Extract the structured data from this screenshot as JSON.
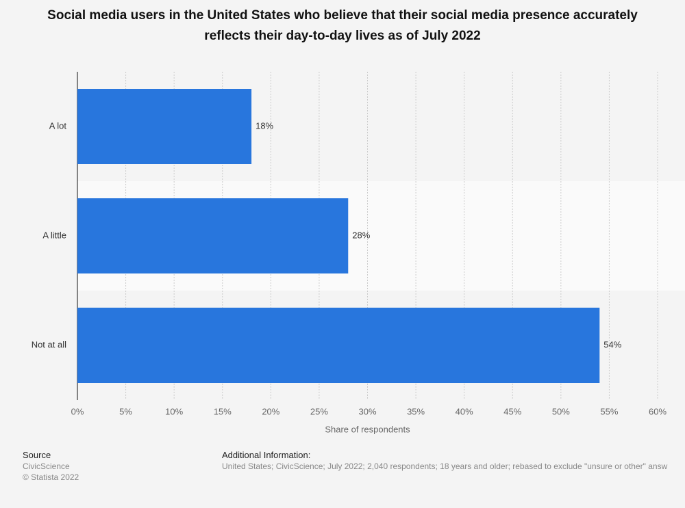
{
  "chart_data": {
    "type": "bar",
    "orientation": "horizontal",
    "title": "Social media users in the United States who believe that their social media presence accurately reflects their day-to-day lives as of July 2022",
    "categories": [
      "A lot",
      "A little",
      "Not at all"
    ],
    "values": [
      18,
      28,
      54
    ],
    "value_labels": [
      "18%",
      "28%",
      "54%"
    ],
    "color": "#2876dd",
    "xlim": [
      0,
      60
    ],
    "xticks": [
      {
        "value": 0,
        "label": "0%"
      },
      {
        "value": 5,
        "label": "5%"
      },
      {
        "value": 10,
        "label": "10%"
      },
      {
        "value": 15,
        "label": "15%"
      },
      {
        "value": 20,
        "label": "20%"
      },
      {
        "value": 25,
        "label": "25%"
      },
      {
        "value": 30,
        "label": "30%"
      },
      {
        "value": 35,
        "label": "35%"
      },
      {
        "value": 40,
        "label": "40%"
      },
      {
        "value": 45,
        "label": "45%"
      },
      {
        "value": 50,
        "label": "50%"
      },
      {
        "value": 55,
        "label": "55%"
      },
      {
        "value": 60,
        "label": "60%"
      }
    ],
    "xlabel": "Share of respondents",
    "grid": true
  },
  "footer": {
    "source_title": "Source",
    "source": "CivicScience",
    "copyright": "© Statista 2022",
    "info_title": "Additional Information:",
    "info": "United States; CivicScience; July 2022; 2,040 respondents; 18 years and older; rebased to exclude \"unsure or other\" answ"
  }
}
